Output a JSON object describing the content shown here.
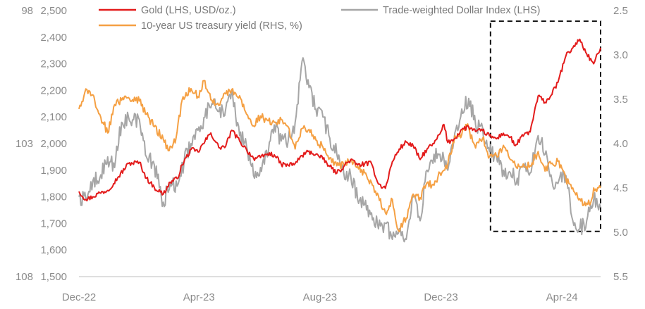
{
  "chart_data": {
    "type": "line",
    "x_start": "2022-12-01",
    "x_end": "2024-05-10",
    "x_ticks": [
      {
        "date": "2022-12-01",
        "label": "Dec-22"
      },
      {
        "date": "2023-04-01",
        "label": "Apr-23"
      },
      {
        "date": "2023-08-01",
        "label": "Aug-23"
      },
      {
        "date": "2023-12-01",
        "label": "Dec-23"
      },
      {
        "date": "2024-04-01",
        "label": "Apr-24"
      }
    ],
    "y_left": {
      "range": [
        1500,
        2500
      ],
      "ticks": [
        "1,500",
        "1,600",
        "1,700",
        "1,800",
        "1,900",
        "2,000",
        "2,100",
        "2,200",
        "2,300",
        "2,400",
        "2,500"
      ]
    },
    "y_left_dollar": {
      "range": [
        108,
        98
      ],
      "ticks": [
        "98",
        "103",
        "108"
      ]
    },
    "y_right": {
      "range": [
        2.5,
        5.5
      ],
      "inverted": true,
      "ticks": [
        "2.5",
        "3.0",
        "3.5",
        "4.0",
        "4.5",
        "5.0",
        "5.5"
      ]
    },
    "highlight_box": {
      "x": [
        "2024-01-20",
        "2024-05-10"
      ],
      "y_left": [
        1670,
        2460
      ]
    },
    "series": [
      {
        "name": "Gold (LHS, USD/oz.)",
        "axis": "left",
        "color": "#e31b1b",
        "points": [
          [
            "2022-12-01",
            1820
          ],
          [
            "2022-12-08",
            1790
          ],
          [
            "2022-12-15",
            1800
          ],
          [
            "2022-12-22",
            1815
          ],
          [
            "2022-12-30",
            1824
          ],
          [
            "2023-01-10",
            1876
          ],
          [
            "2023-01-20",
            1925
          ],
          [
            "2023-01-31",
            1930
          ],
          [
            "2023-02-07",
            1870
          ],
          [
            "2023-02-15",
            1835
          ],
          [
            "2023-02-24",
            1810
          ],
          [
            "2023-03-03",
            1855
          ],
          [
            "2023-03-10",
            1868
          ],
          [
            "2023-03-15",
            1920
          ],
          [
            "2023-03-24",
            1978
          ],
          [
            "2023-03-31",
            1969
          ],
          [
            "2023-04-07",
            2008
          ],
          [
            "2023-04-13",
            2040
          ],
          [
            "2023-04-21",
            1985
          ],
          [
            "2023-04-28",
            1990
          ],
          [
            "2023-05-04",
            2050
          ],
          [
            "2023-05-12",
            2010
          ],
          [
            "2023-05-19",
            1977
          ],
          [
            "2023-05-26",
            1945
          ],
          [
            "2023-06-02",
            1947
          ],
          [
            "2023-06-09",
            1961
          ],
          [
            "2023-06-16",
            1958
          ],
          [
            "2023-06-23",
            1922
          ],
          [
            "2023-06-30",
            1919
          ],
          [
            "2023-07-07",
            1925
          ],
          [
            "2023-07-14",
            1955
          ],
          [
            "2023-07-20",
            1970
          ],
          [
            "2023-07-28",
            1960
          ],
          [
            "2023-08-04",
            1942
          ],
          [
            "2023-08-11",
            1914
          ],
          [
            "2023-08-18",
            1889
          ],
          [
            "2023-08-25",
            1914
          ],
          [
            "2023-09-01",
            1940
          ],
          [
            "2023-09-08",
            1919
          ],
          [
            "2023-09-15",
            1924
          ],
          [
            "2023-09-22",
            1925
          ],
          [
            "2023-09-29",
            1848
          ],
          [
            "2023-10-06",
            1832
          ],
          [
            "2023-10-13",
            1932
          ],
          [
            "2023-10-20",
            1980
          ],
          [
            "2023-10-27",
            2006
          ],
          [
            "2023-11-03",
            1992
          ],
          [
            "2023-11-10",
            1940
          ],
          [
            "2023-11-17",
            1980
          ],
          [
            "2023-11-24",
            2000
          ],
          [
            "2023-11-30",
            2036
          ],
          [
            "2023-12-04",
            2072
          ],
          [
            "2023-12-08",
            2004
          ],
          [
            "2023-12-15",
            2019
          ],
          [
            "2023-12-22",
            2053
          ],
          [
            "2023-12-29",
            2063
          ],
          [
            "2024-01-05",
            2045
          ],
          [
            "2024-01-12",
            2049
          ],
          [
            "2024-01-19",
            2029
          ],
          [
            "2024-01-26",
            2018
          ],
          [
            "2024-02-02",
            2039
          ],
          [
            "2024-02-09",
            2024
          ],
          [
            "2024-02-14",
            1992
          ],
          [
            "2024-02-23",
            2035
          ],
          [
            "2024-02-29",
            2044
          ],
          [
            "2024-03-08",
            2179
          ],
          [
            "2024-03-15",
            2155
          ],
          [
            "2024-03-21",
            2181
          ],
          [
            "2024-03-28",
            2230
          ],
          [
            "2024-04-05",
            2330
          ],
          [
            "2024-04-12",
            2360
          ],
          [
            "2024-04-19",
            2392
          ],
          [
            "2024-04-26",
            2337
          ],
          [
            "2024-05-03",
            2300
          ],
          [
            "2024-05-10",
            2360
          ]
        ]
      },
      {
        "name": "Trade-weighted Dollar Index (LHS)",
        "axis": "left_dollar",
        "color": "#a6a6a6",
        "points": [
          [
            "2022-12-01",
            105.0
          ],
          [
            "2022-12-08",
            105.1
          ],
          [
            "2022-12-15",
            104.4
          ],
          [
            "2022-12-22",
            104.3
          ],
          [
            "2022-12-30",
            103.5
          ],
          [
            "2023-01-06",
            103.9
          ],
          [
            "2023-01-13",
            102.2
          ],
          [
            "2023-01-20",
            102.0
          ],
          [
            "2023-01-31",
            102.1
          ],
          [
            "2023-02-07",
            103.5
          ],
          [
            "2023-02-15",
            103.8
          ],
          [
            "2023-02-24",
            105.2
          ],
          [
            "2023-03-03",
            104.5
          ],
          [
            "2023-03-10",
            104.6
          ],
          [
            "2023-03-17",
            103.7
          ],
          [
            "2023-03-24",
            103.0
          ],
          [
            "2023-03-31",
            102.5
          ],
          [
            "2023-04-07",
            102.0
          ],
          [
            "2023-04-14",
            101.5
          ],
          [
            "2023-04-21",
            101.8
          ],
          [
            "2023-04-28",
            101.7
          ],
          [
            "2023-05-05",
            101.2
          ],
          [
            "2023-05-12",
            102.7
          ],
          [
            "2023-05-19",
            103.1
          ],
          [
            "2023-05-26",
            104.2
          ],
          [
            "2023-06-02",
            103.9
          ],
          [
            "2023-06-09",
            103.5
          ],
          [
            "2023-06-16",
            102.3
          ],
          [
            "2023-06-23",
            102.9
          ],
          [
            "2023-06-30",
            102.9
          ],
          [
            "2023-07-07",
            102.2
          ],
          [
            "2023-07-14",
            99.9
          ],
          [
            "2023-07-21",
            100.9
          ],
          [
            "2023-07-28",
            101.7
          ],
          [
            "2023-08-04",
            102.0
          ],
          [
            "2023-08-11",
            102.8
          ],
          [
            "2023-08-18",
            103.4
          ],
          [
            "2023-08-25",
            104.1
          ],
          [
            "2023-09-01",
            104.2
          ],
          [
            "2023-09-08",
            105.1
          ],
          [
            "2023-09-15",
            105.3
          ],
          [
            "2023-09-22",
            105.6
          ],
          [
            "2023-09-29",
            106.2
          ],
          [
            "2023-10-06",
            106.0
          ],
          [
            "2023-10-13",
            106.6
          ],
          [
            "2023-10-20",
            106.2
          ],
          [
            "2023-10-27",
            106.6
          ],
          [
            "2023-11-03",
            105.0
          ],
          [
            "2023-11-10",
            105.9
          ],
          [
            "2023-11-17",
            104.0
          ],
          [
            "2023-11-24",
            103.4
          ],
          [
            "2023-11-30",
            103.4
          ],
          [
            "2023-12-08",
            104.0
          ],
          [
            "2023-12-15",
            102.6
          ],
          [
            "2023-12-22",
            101.7
          ],
          [
            "2023-12-29",
            101.3
          ],
          [
            "2024-01-05",
            102.3
          ],
          [
            "2024-01-12",
            102.4
          ],
          [
            "2024-01-19",
            103.3
          ],
          [
            "2024-01-26",
            103.5
          ],
          [
            "2024-02-02",
            104.0
          ],
          [
            "2024-02-09",
            104.1
          ],
          [
            "2024-02-16",
            104.3
          ],
          [
            "2024-02-23",
            103.9
          ],
          [
            "2024-02-29",
            104.1
          ],
          [
            "2024-03-08",
            102.7
          ],
          [
            "2024-03-15",
            103.4
          ],
          [
            "2024-03-22",
            104.4
          ],
          [
            "2024-03-28",
            104.5
          ],
          [
            "2024-04-05",
            104.2
          ],
          [
            "2024-04-12",
            105.9
          ],
          [
            "2024-04-19",
            106.2
          ],
          [
            "2024-04-26",
            105.9
          ],
          [
            "2024-05-03",
            105.1
          ],
          [
            "2024-05-10",
            105.4
          ]
        ]
      },
      {
        "name": "10-year US treasury yield (RHS, %)",
        "axis": "right",
        "color": "#f5a043",
        "points": [
          [
            "2022-12-01",
            3.61
          ],
          [
            "2022-12-07",
            3.42
          ],
          [
            "2022-12-15",
            3.45
          ],
          [
            "2022-12-22",
            3.67
          ],
          [
            "2022-12-30",
            3.88
          ],
          [
            "2023-01-06",
            3.56
          ],
          [
            "2023-01-13",
            3.51
          ],
          [
            "2023-01-20",
            3.48
          ],
          [
            "2023-01-31",
            3.52
          ],
          [
            "2023-02-07",
            3.67
          ],
          [
            "2023-02-15",
            3.81
          ],
          [
            "2023-02-24",
            3.95
          ],
          [
            "2023-03-02",
            4.08
          ],
          [
            "2023-03-09",
            3.93
          ],
          [
            "2023-03-15",
            3.51
          ],
          [
            "2023-03-24",
            3.38
          ],
          [
            "2023-03-31",
            3.47
          ],
          [
            "2023-04-06",
            3.29
          ],
          [
            "2023-04-14",
            3.51
          ],
          [
            "2023-04-21",
            3.57
          ],
          [
            "2023-04-28",
            3.44
          ],
          [
            "2023-05-04",
            3.39
          ],
          [
            "2023-05-12",
            3.46
          ],
          [
            "2023-05-19",
            3.67
          ],
          [
            "2023-05-26",
            3.8
          ],
          [
            "2023-06-02",
            3.69
          ],
          [
            "2023-06-09",
            3.74
          ],
          [
            "2023-06-16",
            3.76
          ],
          [
            "2023-06-23",
            3.73
          ],
          [
            "2023-06-30",
            3.81
          ],
          [
            "2023-07-07",
            4.06
          ],
          [
            "2023-07-14",
            3.83
          ],
          [
            "2023-07-21",
            3.84
          ],
          [
            "2023-07-28",
            3.96
          ],
          [
            "2023-08-04",
            4.04
          ],
          [
            "2023-08-11",
            4.16
          ],
          [
            "2023-08-18",
            4.25
          ],
          [
            "2023-08-25",
            4.24
          ],
          [
            "2023-09-01",
            4.18
          ],
          [
            "2023-09-08",
            4.26
          ],
          [
            "2023-09-15",
            4.33
          ],
          [
            "2023-09-22",
            4.44
          ],
          [
            "2023-09-29",
            4.59
          ],
          [
            "2023-10-06",
            4.78
          ],
          [
            "2023-10-13",
            4.63
          ],
          [
            "2023-10-19",
            4.98
          ],
          [
            "2023-10-27",
            4.84
          ],
          [
            "2023-11-03",
            4.57
          ],
          [
            "2023-11-10",
            4.61
          ],
          [
            "2023-11-17",
            4.44
          ],
          [
            "2023-11-24",
            4.47
          ],
          [
            "2023-11-30",
            4.33
          ],
          [
            "2023-12-08",
            4.23
          ],
          [
            "2023-12-15",
            3.91
          ],
          [
            "2023-12-22",
            3.9
          ],
          [
            "2023-12-27",
            3.79
          ],
          [
            "2024-01-05",
            4.05
          ],
          [
            "2024-01-12",
            3.94
          ],
          [
            "2024-01-19",
            4.15
          ],
          [
            "2024-01-26",
            4.14
          ],
          [
            "2024-02-02",
            4.02
          ],
          [
            "2024-02-09",
            4.18
          ],
          [
            "2024-02-16",
            4.28
          ],
          [
            "2024-02-23",
            4.25
          ],
          [
            "2024-02-29",
            4.25
          ],
          [
            "2024-03-08",
            4.09
          ],
          [
            "2024-03-15",
            4.31
          ],
          [
            "2024-03-22",
            4.22
          ],
          [
            "2024-03-28",
            4.2
          ],
          [
            "2024-04-05",
            4.4
          ],
          [
            "2024-04-12",
            4.5
          ],
          [
            "2024-04-19",
            4.62
          ],
          [
            "2024-04-25",
            4.7
          ],
          [
            "2024-05-01",
            4.63
          ],
          [
            "2024-05-03",
            4.5
          ],
          [
            "2024-05-10",
            4.5
          ]
        ]
      }
    ]
  }
}
